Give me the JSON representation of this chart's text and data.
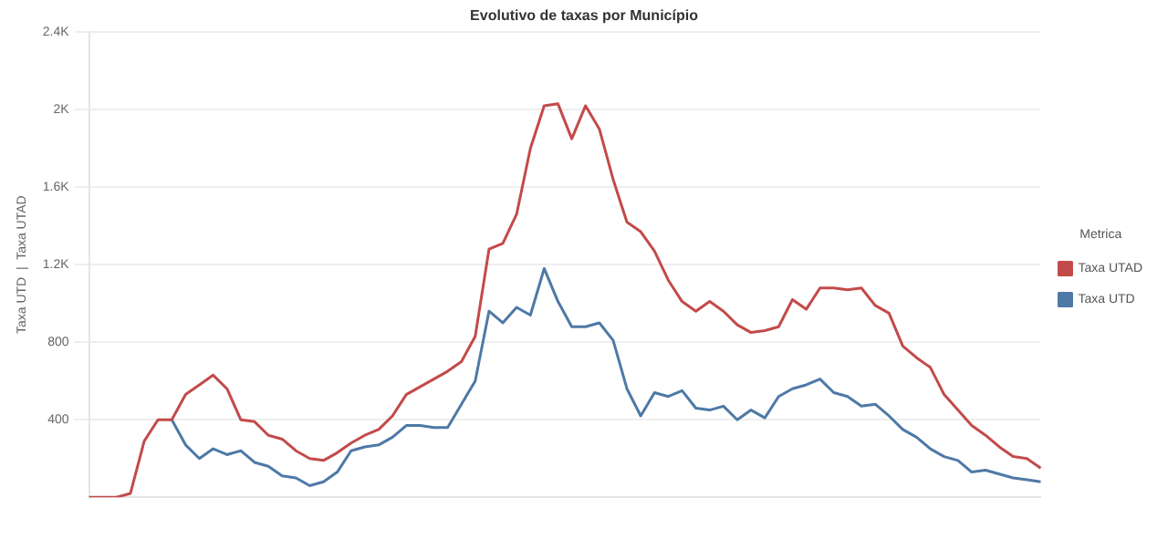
{
  "chart_data": {
    "type": "line",
    "title": "Evolutivo de taxas por Município",
    "ylabel": "Taxa UTD  |  Taxa UTAD",
    "legend_title": "Metrica",
    "legend": "right",
    "grid": "y",
    "marker": "none",
    "line_style": "solid",
    "categories": [
      null,
      null,
      null,
      null,
      null,
      null,
      null,
      null,
      null,
      null,
      null,
      null,
      null,
      null,
      null,
      null,
      null,
      null,
      null,
      null,
      null,
      null,
      null,
      null,
      null,
      null,
      null,
      null,
      null,
      null,
      null,
      null,
      null,
      null,
      null,
      null,
      null,
      null,
      null,
      null,
      null,
      null,
      null,
      null,
      null,
      null,
      null,
      null,
      null,
      null,
      null,
      null,
      null,
      null,
      null,
      null,
      null,
      null,
      null,
      null,
      null,
      null,
      null,
      null,
      null,
      null,
      null,
      null,
      null,
      null
    ],
    "ylim": [
      0,
      2400
    ],
    "yticks": [
      400,
      800,
      {
        "value": 1200,
        "label": "1.2K"
      },
      {
        "value": 1600,
        "label": "1.6K"
      },
      {
        "value": 2000,
        "label": "2K"
      },
      {
        "value": 2400,
        "label": "2.4K"
      }
    ],
    "series": [
      {
        "name": "Taxa UTD",
        "color": "#4e79a7",
        "values": [
          null,
          null,
          null,
          null,
          null,
          null,
          400,
          270,
          200,
          250,
          220,
          240,
          180,
          160,
          110,
          100,
          60,
          80,
          130,
          240,
          260,
          270,
          310,
          370,
          370,
          360,
          360,
          480,
          600,
          960,
          900,
          980,
          940,
          1180,
          1010,
          880,
          880,
          900,
          810,
          560,
          420,
          540,
          520,
          550,
          460,
          450,
          470,
          400,
          450,
          410,
          520,
          560,
          580,
          610,
          540,
          520,
          470,
          480,
          420,
          350,
          310,
          250,
          210,
          190,
          130,
          140,
          120,
          100,
          90,
          80
        ]
      },
      {
        "name": "Taxa UTAD",
        "color": "#c34a4a",
        "values": [
          0,
          0,
          0,
          20,
          290,
          400,
          400,
          530,
          580,
          630,
          560,
          400,
          390,
          320,
          300,
          240,
          200,
          190,
          230,
          280,
          320,
          350,
          420,
          530,
          570,
          610,
          650,
          700,
          830,
          1280,
          1310,
          1460,
          1800,
          2020,
          2030,
          1850,
          2020,
          1900,
          1640,
          1420,
          1370,
          1270,
          1120,
          1010,
          960,
          1010,
          960,
          890,
          850,
          860,
          880,
          1020,
          970,
          1080,
          1080,
          1070,
          1080,
          990,
          950,
          780,
          720,
          670,
          530,
          450,
          370,
          320,
          260,
          210,
          200,
          150
        ]
      }
    ]
  }
}
